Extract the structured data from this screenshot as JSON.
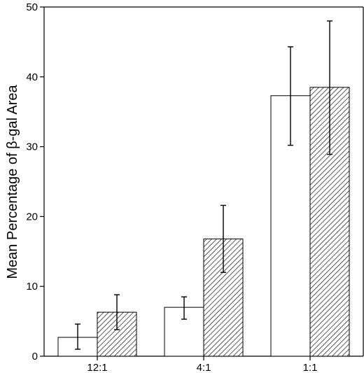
{
  "chart_data": {
    "type": "bar",
    "ylabel": "Mean Percentage of β-gal Area",
    "xlabel": "",
    "categories": [
      "12:1",
      "4:1",
      "1:1"
    ],
    "ylim": [
      0,
      50
    ],
    "yticks": [
      0,
      10,
      20,
      30,
      40,
      50
    ],
    "grid": false,
    "legend": "none",
    "series": [
      {
        "fill": "open",
        "fill_color": "#ffffff",
        "values": [
          2.7,
          7.0,
          37.3
        ],
        "error_low": [
          1.0,
          5.3,
          30.2
        ],
        "error_high": [
          4.6,
          8.5,
          44.3
        ]
      },
      {
        "fill": "diagonal-hatch",
        "fill_color": "#000000",
        "values": [
          6.3,
          16.8,
          38.5
        ],
        "error_low": [
          3.8,
          12.0,
          28.9
        ],
        "error_high": [
          8.8,
          21.6,
          48.0
        ]
      }
    ]
  }
}
